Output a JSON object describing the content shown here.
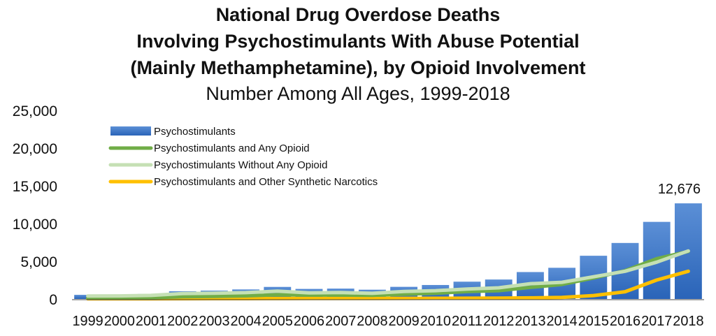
{
  "title": {
    "lines": [
      "National Drug Overdose Deaths",
      "Involving Psychostimulants With Abuse Potential",
      "(Mainly Methamphetamine), by Opioid Involvement"
    ],
    "subtitle": "Number Among All Ages, 1999-2018"
  },
  "colors": {
    "bar_top": "#5b8fd6",
    "bar_bottom": "#2a64b8",
    "any_opioid": "#70ad47",
    "without_opioid": "#c5e0b4",
    "synthetic_narcotics": "#ffc000",
    "axis": "#444444"
  },
  "chart_data": {
    "type": "bar",
    "title": "National Drug Overdose Deaths Involving Psychostimulants With Abuse Potential (Mainly Methamphetamine), by Opioid Involvement",
    "subtitle": "Number Among All Ages, 1999-2018",
    "xlabel": "",
    "ylabel": "",
    "ylim": [
      0,
      25000
    ],
    "yticks": [
      0,
      5000,
      10000,
      15000,
      20000,
      25000
    ],
    "ytick_labels": [
      "0",
      "5,000",
      "10,000",
      "15,000",
      "20,000",
      "25,000"
    ],
    "categories": [
      "1999",
      "2000",
      "2001",
      "2002",
      "2003",
      "2004",
      "2005",
      "2006",
      "2007",
      "2008",
      "2009",
      "2010",
      "2011",
      "2012",
      "2013",
      "2014",
      "2015",
      "2016",
      "2017",
      "2018"
    ],
    "legend_position": "top-left",
    "series": [
      {
        "name": "Psychostimulants",
        "kind": "bar",
        "values": [
          547,
          578,
          660,
          1025,
          1105,
          1265,
          1600,
          1335,
          1375,
          1230,
          1610,
          1855,
          2295,
          2580,
          3570,
          4135,
          5730,
          7425,
          10220,
          12676
        ]
      },
      {
        "name": "Psychostimulants and Any Opioid",
        "kind": "line",
        "values": [
          150,
          160,
          180,
          300,
          340,
          420,
          560,
          520,
          520,
          480,
          620,
          760,
          980,
          1100,
          1540,
          1930,
          2790,
          3750,
          5340,
          6310
        ]
      },
      {
        "name": "Psychostimulants Without Any Opioid",
        "kind": "line",
        "values": [
          390,
          410,
          470,
          720,
          760,
          840,
          1040,
          810,
          850,
          750,
          990,
          1100,
          1320,
          1480,
          2030,
          2210,
          2940,
          3680,
          4880,
          6370
        ]
      },
      {
        "name": "Psychostimulants and Other Synthetic Narcotics",
        "kind": "line",
        "values": [
          20,
          25,
          30,
          40,
          45,
          50,
          60,
          70,
          70,
          70,
          80,
          90,
          100,
          120,
          150,
          200,
          450,
          960,
          2510,
          3680
        ]
      }
    ],
    "annotations": [
      {
        "category": "2018",
        "series": "Psychostimulants",
        "text": "12,676"
      }
    ]
  }
}
